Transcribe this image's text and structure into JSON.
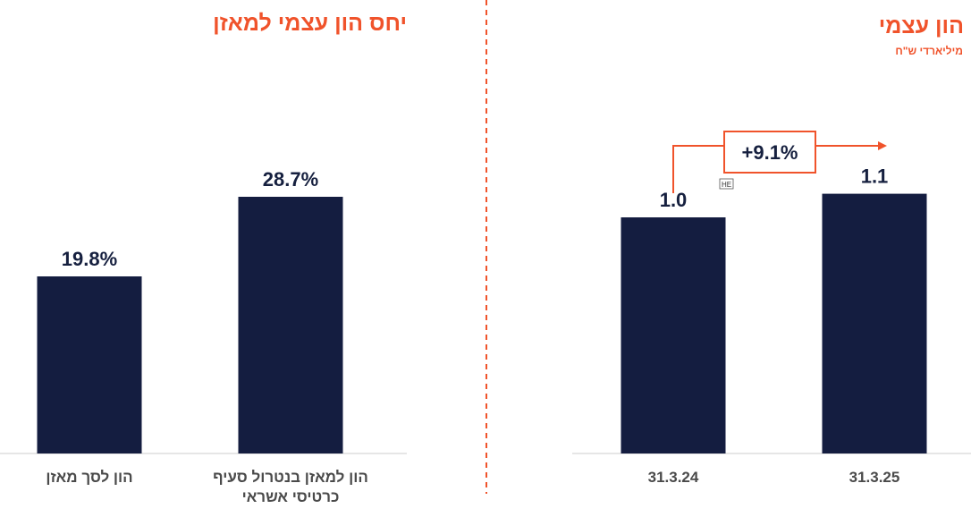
{
  "colors": {
    "bar": "#141d40",
    "accent": "#f0532b",
    "axis": "#cccccc",
    "value_text": "#16203f",
    "category_text": "#4a4a4a"
  },
  "left_chart": {
    "title": "יחס הון עצמי למאזן"
  },
  "right_chart": {
    "title": "הון עצמי",
    "subtitle": "מיליארדי ש\"ח",
    "growth_label": "+9.1%",
    "lang_badge": "HE"
  },
  "chart_data": [
    {
      "type": "bar",
      "title": "יחס הון עצמי למאזן",
      "categories": [
        [
          "הון לסך מאזן"
        ],
        [
          "הון למאזן בנטרול סעיף",
          "כרטיסי אשראי"
        ]
      ],
      "values": [
        19.8,
        28.7
      ],
      "value_labels": [
        "19.8%",
        "28.7%"
      ],
      "ylim": [
        0,
        33
      ],
      "grid": false
    },
    {
      "type": "bar",
      "title": "הון עצמי",
      "subtitle": "מיליארדי ש\"ח",
      "categories": [
        [
          "31.3.24"
        ],
        [
          "31.3.25"
        ]
      ],
      "values": [
        1.0,
        1.1
      ],
      "value_labels": [
        "1.0",
        "1.1"
      ],
      "ylim": [
        0,
        1.25
      ],
      "annotation": "+9.1%",
      "grid": false
    }
  ]
}
